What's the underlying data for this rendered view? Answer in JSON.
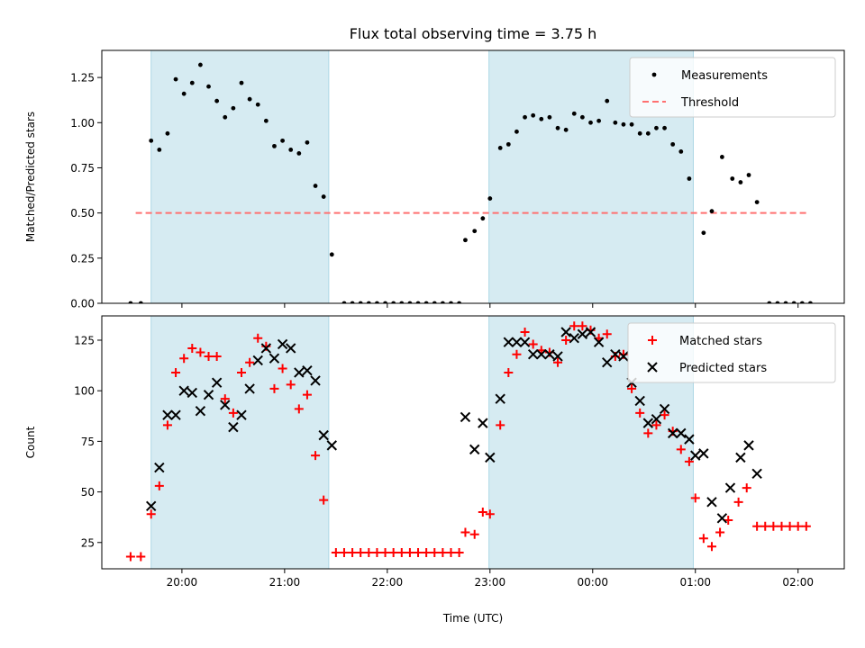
{
  "title": "Flux total observing time = 3.75 h",
  "chart_data": {
    "type": "scatter",
    "title": "Flux total observing time = 3.75 h",
    "xlabel": "Time (UTC)",
    "x_unit": "hours UTC (values >= 24 are past midnight)",
    "xlim": [
      19.22,
      26.45
    ],
    "x_ticks": [
      {
        "value": 20,
        "label": "20:00"
      },
      {
        "value": 21,
        "label": "21:00"
      },
      {
        "value": 22,
        "label": "22:00"
      },
      {
        "value": 23,
        "label": "23:00"
      },
      {
        "value": 24,
        "label": "00:00"
      },
      {
        "value": 25,
        "label": "01:00"
      },
      {
        "value": 26,
        "label": "02:00"
      }
    ],
    "shaded_regions": [
      [
        19.7,
        21.43
      ],
      [
        22.99,
        24.98
      ]
    ],
    "shade_color": "#add8e6",
    "panels": [
      {
        "id": "ratio",
        "ylabel": "Matched/Predicted stars",
        "ylim": [
          0,
          1.4
        ],
        "y_ticks": [
          0,
          0.25,
          0.5,
          0.75,
          1.0,
          1.25
        ],
        "y_tick_labels": [
          "0.00",
          "0.25",
          "0.50",
          "0.75",
          "1.00",
          "1.25"
        ],
        "legend": [
          {
            "label": "Measurements",
            "marker": "dot",
            "color": "#000000"
          },
          {
            "label": "Threshold",
            "marker": "dash",
            "color": "#ff7070"
          }
        ],
        "threshold": {
          "label": "Threshold",
          "value": 0.5,
          "x_range": [
            19.55,
            26.1
          ],
          "color": "#ff7070"
        },
        "series": [
          {
            "name": "Measurements",
            "marker": "dot",
            "color": "#000000",
            "points": [
              [
                19.5,
                0
              ],
              [
                19.6,
                0
              ],
              [
                19.7,
                0.9
              ],
              [
                19.78,
                0.85
              ],
              [
                19.86,
                0.94
              ],
              [
                19.94,
                1.24
              ],
              [
                20.02,
                1.16
              ],
              [
                20.1,
                1.22
              ],
              [
                20.18,
                1.32
              ],
              [
                20.26,
                1.2
              ],
              [
                20.34,
                1.12
              ],
              [
                20.42,
                1.03
              ],
              [
                20.5,
                1.08
              ],
              [
                20.58,
                1.22
              ],
              [
                20.66,
                1.13
              ],
              [
                20.74,
                1.1
              ],
              [
                20.82,
                1.01
              ],
              [
                20.9,
                0.87
              ],
              [
                20.98,
                0.9
              ],
              [
                21.06,
                0.85
              ],
              [
                21.14,
                0.83
              ],
              [
                21.22,
                0.89
              ],
              [
                21.3,
                0.65
              ],
              [
                21.38,
                0.59
              ],
              [
                21.46,
                0.27
              ],
              [
                21.58,
                0
              ],
              [
                21.66,
                0
              ],
              [
                21.74,
                0
              ],
              [
                21.82,
                0
              ],
              [
                21.9,
                0
              ],
              [
                21.98,
                0
              ],
              [
                22.06,
                0
              ],
              [
                22.14,
                0
              ],
              [
                22.22,
                0
              ],
              [
                22.3,
                0
              ],
              [
                22.38,
                0
              ],
              [
                22.46,
                0
              ],
              [
                22.54,
                0
              ],
              [
                22.62,
                0
              ],
              [
                22.7,
                0
              ],
              [
                22.76,
                0.35
              ],
              [
                22.85,
                0.4
              ],
              [
                22.93,
                0.47
              ],
              [
                23.0,
                0.58
              ],
              [
                23.1,
                0.86
              ],
              [
                23.18,
                0.88
              ],
              [
                23.26,
                0.95
              ],
              [
                23.34,
                1.03
              ],
              [
                23.42,
                1.04
              ],
              [
                23.5,
                1.02
              ],
              [
                23.58,
                1.03
              ],
              [
                23.66,
                0.97
              ],
              [
                23.74,
                0.96
              ],
              [
                23.82,
                1.05
              ],
              [
                23.9,
                1.03
              ],
              [
                23.98,
                1.0
              ],
              [
                24.06,
                1.01
              ],
              [
                24.14,
                1.12
              ],
              [
                24.22,
                1.0
              ],
              [
                24.3,
                0.99
              ],
              [
                24.38,
                0.99
              ],
              [
                24.46,
                0.94
              ],
              [
                24.54,
                0.94
              ],
              [
                24.62,
                0.97
              ],
              [
                24.7,
                0.97
              ],
              [
                24.78,
                0.88
              ],
              [
                24.86,
                0.84
              ],
              [
                24.94,
                0.69
              ],
              [
                25.08,
                0.39
              ],
              [
                25.16,
                0.51
              ],
              [
                25.26,
                0.81
              ],
              [
                25.36,
                0.69
              ],
              [
                25.44,
                0.67
              ],
              [
                25.52,
                0.71
              ],
              [
                25.6,
                0.56
              ],
              [
                25.72,
                0
              ],
              [
                25.8,
                0
              ],
              [
                25.88,
                0
              ],
              [
                25.96,
                0
              ],
              [
                26.04,
                0
              ],
              [
                26.12,
                0
              ]
            ]
          }
        ]
      },
      {
        "id": "count",
        "ylabel": "Count",
        "ylim": [
          12,
          137
        ],
        "y_ticks": [
          25,
          50,
          75,
          100,
          125
        ],
        "y_tick_labels": [
          "25",
          "50",
          "75",
          "100",
          "125"
        ],
        "legend": [
          {
            "label": "Matched stars",
            "marker": "plus",
            "color": "#ff0000"
          },
          {
            "label": "Predicted stars",
            "marker": "x",
            "color": "#000000"
          }
        ],
        "series": [
          {
            "name": "Matched stars",
            "marker": "plus",
            "color": "#ff0000",
            "points": [
              [
                19.5,
                18
              ],
              [
                19.6,
                18
              ],
              [
                19.7,
                39
              ],
              [
                19.78,
                53
              ],
              [
                19.86,
                83
              ],
              [
                19.94,
                109
              ],
              [
                20.02,
                116
              ],
              [
                20.1,
                121
              ],
              [
                20.18,
                119
              ],
              [
                20.26,
                117
              ],
              [
                20.34,
                117
              ],
              [
                20.42,
                96
              ],
              [
                20.5,
                89
              ],
              [
                20.58,
                109
              ],
              [
                20.66,
                114
              ],
              [
                20.74,
                126
              ],
              [
                20.82,
                122
              ],
              [
                20.9,
                101
              ],
              [
                20.98,
                111
              ],
              [
                21.06,
                103
              ],
              [
                21.14,
                91
              ],
              [
                21.22,
                98
              ],
              [
                21.3,
                68
              ],
              [
                21.38,
                46
              ],
              [
                21.5,
                20
              ],
              [
                21.58,
                20
              ],
              [
                21.66,
                20
              ],
              [
                21.74,
                20
              ],
              [
                21.82,
                20
              ],
              [
                21.9,
                20
              ],
              [
                21.98,
                20
              ],
              [
                22.06,
                20
              ],
              [
                22.14,
                20
              ],
              [
                22.22,
                20
              ],
              [
                22.3,
                20
              ],
              [
                22.38,
                20
              ],
              [
                22.46,
                20
              ],
              [
                22.54,
                20
              ],
              [
                22.62,
                20
              ],
              [
                22.7,
                20
              ],
              [
                22.76,
                30
              ],
              [
                22.85,
                29
              ],
              [
                22.93,
                40
              ],
              [
                23.0,
                39
              ],
              [
                23.1,
                83
              ],
              [
                23.18,
                109
              ],
              [
                23.26,
                118
              ],
              [
                23.34,
                129
              ],
              [
                23.42,
                123
              ],
              [
                23.5,
                120
              ],
              [
                23.58,
                119
              ],
              [
                23.66,
                114
              ],
              [
                23.74,
                125
              ],
              [
                23.82,
                132
              ],
              [
                23.9,
                132
              ],
              [
                23.98,
                130
              ],
              [
                24.06,
                126
              ],
              [
                24.14,
                128
              ],
              [
                24.22,
                117
              ],
              [
                24.3,
                118
              ],
              [
                24.38,
                101
              ],
              [
                24.46,
                89
              ],
              [
                24.54,
                79
              ],
              [
                24.62,
                83
              ],
              [
                24.7,
                88
              ],
              [
                24.78,
                80
              ],
              [
                24.86,
                71
              ],
              [
                24.94,
                65
              ],
              [
                25.0,
                47
              ],
              [
                25.08,
                27
              ],
              [
                25.16,
                23
              ],
              [
                25.24,
                30
              ],
              [
                25.32,
                36
              ],
              [
                25.42,
                45
              ],
              [
                25.5,
                52
              ],
              [
                25.6,
                33
              ],
              [
                25.68,
                33
              ],
              [
                25.76,
                33
              ],
              [
                25.84,
                33
              ],
              [
                25.92,
                33
              ],
              [
                26.0,
                33
              ],
              [
                26.08,
                33
              ]
            ]
          },
          {
            "name": "Predicted stars",
            "marker": "x",
            "color": "#000000",
            "points": [
              [
                19.7,
                43
              ],
              [
                19.78,
                62
              ],
              [
                19.86,
                88
              ],
              [
                19.94,
                88
              ],
              [
                20.02,
                100
              ],
              [
                20.1,
                99
              ],
              [
                20.18,
                90
              ],
              [
                20.26,
                98
              ],
              [
                20.34,
                104
              ],
              [
                20.42,
                93
              ],
              [
                20.5,
                82
              ],
              [
                20.58,
                88
              ],
              [
                20.66,
                101
              ],
              [
                20.74,
                115
              ],
              [
                20.82,
                121
              ],
              [
                20.9,
                116
              ],
              [
                20.98,
                123
              ],
              [
                21.06,
                121
              ],
              [
                21.14,
                109
              ],
              [
                21.22,
                110
              ],
              [
                21.3,
                105
              ],
              [
                21.38,
                78
              ],
              [
                21.46,
                73
              ],
              [
                22.76,
                87
              ],
              [
                22.85,
                71
              ],
              [
                22.93,
                84
              ],
              [
                23.0,
                67
              ],
              [
                23.1,
                96
              ],
              [
                23.18,
                124
              ],
              [
                23.26,
                124
              ],
              [
                23.34,
                124
              ],
              [
                23.42,
                118
              ],
              [
                23.5,
                118
              ],
              [
                23.58,
                118
              ],
              [
                23.66,
                117
              ],
              [
                23.74,
                129
              ],
              [
                23.82,
                126
              ],
              [
                23.9,
                128
              ],
              [
                23.98,
                129
              ],
              [
                24.06,
                124
              ],
              [
                24.14,
                114
              ],
              [
                24.22,
                118
              ],
              [
                24.3,
                117
              ],
              [
                24.38,
                104
              ],
              [
                24.46,
                95
              ],
              [
                24.54,
                84
              ],
              [
                24.62,
                86
              ],
              [
                24.7,
                91
              ],
              [
                24.78,
                79
              ],
              [
                24.86,
                79
              ],
              [
                24.94,
                76
              ],
              [
                25.0,
                68
              ],
              [
                25.08,
                69
              ],
              [
                25.16,
                45
              ],
              [
                25.26,
                37
              ],
              [
                25.34,
                52
              ],
              [
                25.44,
                67
              ],
              [
                25.52,
                73
              ],
              [
                25.6,
                59
              ]
            ]
          }
        ]
      }
    ]
  }
}
